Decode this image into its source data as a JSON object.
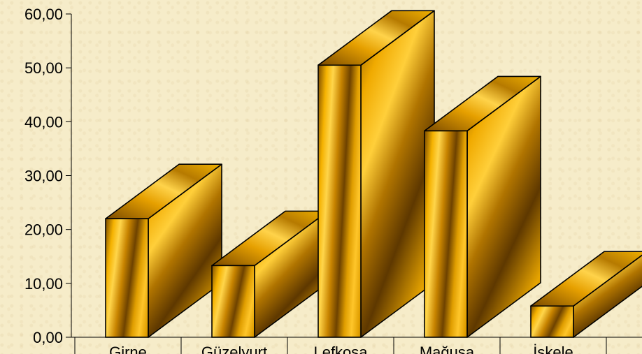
{
  "chart_data": {
    "type": "bar",
    "categories": [
      "Girne",
      "Güzelyurt",
      "Lefkoşa",
      "Mağusa",
      "İskele"
    ],
    "values": [
      22,
      13.3,
      50.5,
      38.3,
      5.8
    ],
    "y_tick_labels": [
      "0,00",
      "10,00",
      "20,00",
      "30,00",
      "40,00",
      "50,00",
      "60,00"
    ],
    "ylim": [
      0,
      60
    ],
    "grid": false,
    "legend": "none",
    "bar_color": "#f2a800",
    "title": "",
    "xlabel": "",
    "ylabel": ""
  }
}
